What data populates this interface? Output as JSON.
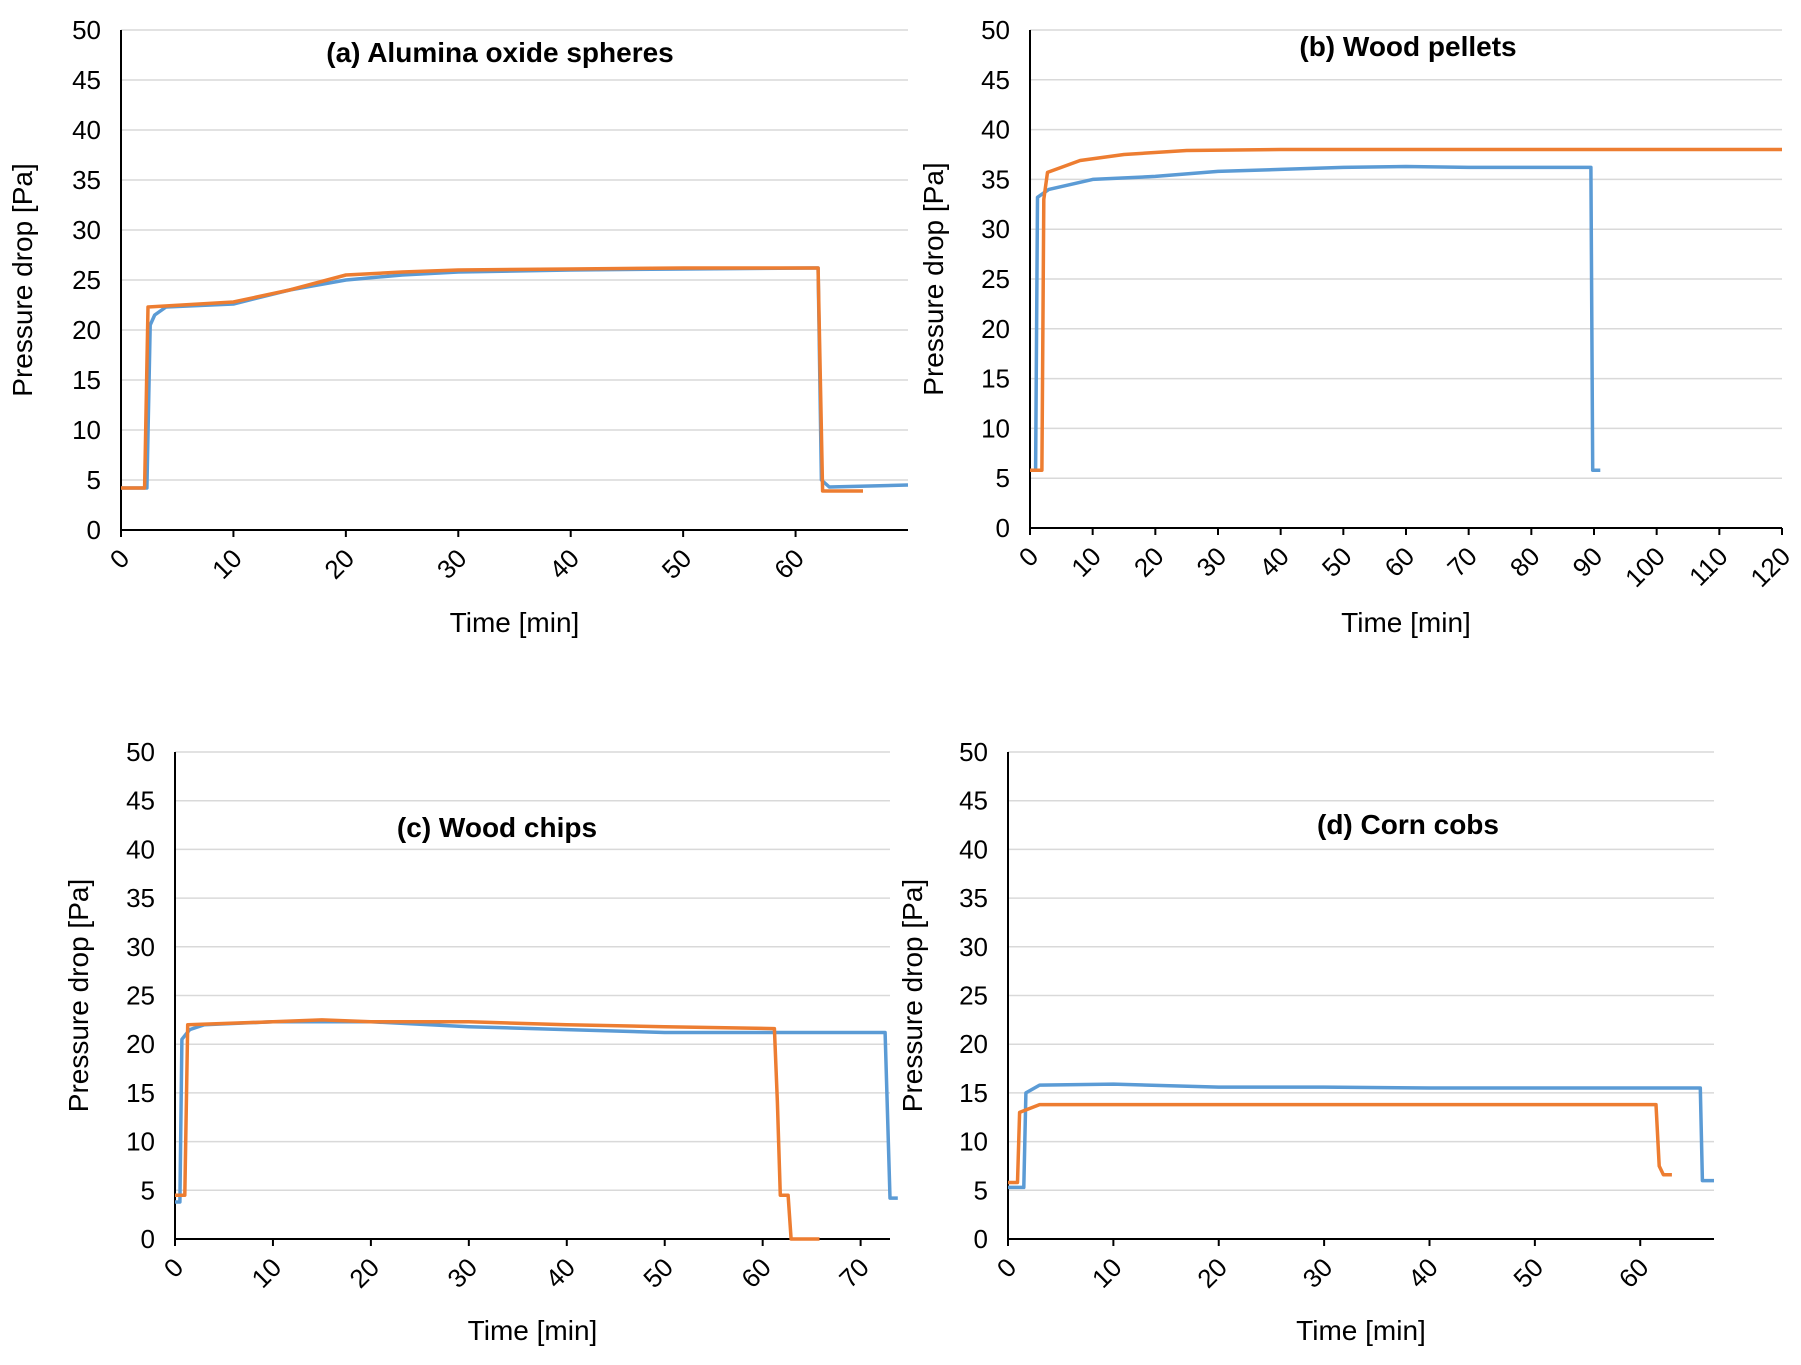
{
  "colors": {
    "series_a": "#5b9bd5",
    "series_b": "#ed7d31"
  },
  "chart_data": [
    {
      "type": "line",
      "title": "(a) Alumina oxide spheres",
      "xlabel": "Time [min]",
      "ylabel": "Pressure drop [Pa]",
      "xlim": [
        0,
        70
      ],
      "ylim": [
        0,
        50
      ],
      "xticks": [
        0,
        10,
        20,
        30,
        40,
        50,
        60
      ],
      "yticks": [
        0,
        5,
        10,
        15,
        20,
        25,
        30,
        35,
        40,
        45,
        50
      ],
      "grid": true,
      "series": [
        {
          "name": "Series 1 (blue)",
          "color": "#5b9bd5",
          "points": [
            [
              0,
              4.2
            ],
            [
              2.3,
              4.2
            ],
            [
              2.6,
              20.5
            ],
            [
              3,
              21.5
            ],
            [
              4,
              22.3
            ],
            [
              10,
              22.6
            ],
            [
              15,
              24
            ],
            [
              20,
              25
            ],
            [
              25,
              25.5
            ],
            [
              30,
              25.8
            ],
            [
              40,
              26
            ],
            [
              50,
              26.1
            ],
            [
              61.5,
              26.2
            ],
            [
              62,
              26.2
            ],
            [
              62.3,
              5
            ],
            [
              63,
              4.3
            ],
            [
              70,
              4.5
            ]
          ]
        },
        {
          "name": "Series 2 (orange)",
          "color": "#ed7d31",
          "points": [
            [
              0,
              4.2
            ],
            [
              2.1,
              4.2
            ],
            [
              2.4,
              22.3
            ],
            [
              10,
              22.8
            ],
            [
              15,
              24
            ],
            [
              20,
              25.5
            ],
            [
              25,
              25.8
            ],
            [
              30,
              26
            ],
            [
              40,
              26.1
            ],
            [
              50,
              26.2
            ],
            [
              61.5,
              26.2
            ],
            [
              62,
              26.2
            ],
            [
              62.4,
              3.9
            ],
            [
              66,
              3.9
            ]
          ]
        }
      ]
    },
    {
      "type": "line",
      "title": "(b) Wood pellets",
      "xlabel": "Time [min]",
      "ylabel": "Pressure drop [Pa]",
      "xlim": [
        0,
        120
      ],
      "ylim": [
        0,
        50
      ],
      "xticks": [
        0,
        10,
        20,
        30,
        40,
        50,
        60,
        70,
        80,
        90,
        100,
        110,
        120
      ],
      "yticks": [
        0,
        5,
        10,
        15,
        20,
        25,
        30,
        35,
        40,
        45,
        50
      ],
      "grid": true,
      "series": [
        {
          "name": "Series 1 (blue)",
          "color": "#5b9bd5",
          "points": [
            [
              0,
              5.8
            ],
            [
              0.9,
              5.8
            ],
            [
              1.2,
              33.2
            ],
            [
              3,
              34
            ],
            [
              10,
              35
            ],
            [
              20,
              35.3
            ],
            [
              30,
              35.8
            ],
            [
              40,
              36
            ],
            [
              50,
              36.2
            ],
            [
              60,
              36.3
            ],
            [
              70,
              36.2
            ],
            [
              80,
              36.2
            ],
            [
              89.5,
              36.2
            ],
            [
              89.8,
              5.8
            ],
            [
              91,
              5.8
            ]
          ]
        },
        {
          "name": "Series 2 (orange)",
          "color": "#ed7d31",
          "points": [
            [
              0,
              5.8
            ],
            [
              1.9,
              5.8
            ],
            [
              2.2,
              33
            ],
            [
              2.8,
              35.7
            ],
            [
              5,
              36.2
            ],
            [
              8,
              36.9
            ],
            [
              15,
              37.5
            ],
            [
              25,
              37.9
            ],
            [
              40,
              38
            ],
            [
              60,
              38
            ],
            [
              80,
              38
            ],
            [
              100,
              38
            ],
            [
              120,
              38
            ]
          ]
        }
      ]
    },
    {
      "type": "line",
      "title": "(c) Wood chips",
      "xlabel": "Time [min]",
      "ylabel": "Pressure drop [Pa]",
      "xlim": [
        0,
        73
      ],
      "ylim": [
        0,
        50
      ],
      "xticks": [
        0,
        10,
        20,
        30,
        40,
        50,
        60,
        70
      ],
      "yticks": [
        0,
        5,
        10,
        15,
        20,
        25,
        30,
        35,
        40,
        45,
        50
      ],
      "grid": true,
      "series": [
        {
          "name": "Series 1 (blue)",
          "color": "#5b9bd5",
          "points": [
            [
              0,
              3.8
            ],
            [
              0.5,
              3.8
            ],
            [
              0.7,
              20.5
            ],
            [
              1.5,
              21.5
            ],
            [
              3,
              22
            ],
            [
              10,
              22.3
            ],
            [
              20,
              22.3
            ],
            [
              30,
              21.8
            ],
            [
              40,
              21.5
            ],
            [
              50,
              21.2
            ],
            [
              60,
              21.2
            ],
            [
              70,
              21.2
            ],
            [
              72.5,
              21.2
            ],
            [
              73,
              4.2
            ],
            [
              73.8,
              4.2
            ]
          ]
        },
        {
          "name": "Series 2 (orange)",
          "color": "#ed7d31",
          "points": [
            [
              0,
              4.5
            ],
            [
              1,
              4.5
            ],
            [
              1.3,
              22
            ],
            [
              10,
              22.3
            ],
            [
              15,
              22.5
            ],
            [
              20,
              22.3
            ],
            [
              30,
              22.3
            ],
            [
              40,
              22
            ],
            [
              50,
              21.8
            ],
            [
              61.2,
              21.6
            ],
            [
              61.5,
              14
            ],
            [
              61.8,
              4.5
            ],
            [
              62.6,
              4.5
            ],
            [
              62.9,
              0
            ],
            [
              65.8,
              0
            ]
          ]
        }
      ]
    },
    {
      "type": "line",
      "title": "(d) Corn cobs",
      "xlabel": "Time [min]",
      "ylabel": "Pressure drop [Pa]",
      "xlim": [
        0,
        67
      ],
      "ylim": [
        0,
        50
      ],
      "xticks": [
        0,
        10,
        20,
        30,
        40,
        50,
        60
      ],
      "yticks": [
        0,
        5,
        10,
        15,
        20,
        25,
        30,
        35,
        40,
        45,
        50
      ],
      "grid": true,
      "series": [
        {
          "name": "Series 1 (blue)",
          "color": "#5b9bd5",
          "points": [
            [
              0,
              5.3
            ],
            [
              1.5,
              5.3
            ],
            [
              1.7,
              15
            ],
            [
              3,
              15.8
            ],
            [
              10,
              15.9
            ],
            [
              20,
              15.6
            ],
            [
              30,
              15.6
            ],
            [
              40,
              15.5
            ],
            [
              50,
              15.5
            ],
            [
              60,
              15.5
            ],
            [
              64,
              15.5
            ],
            [
              65.7,
              15.5
            ],
            [
              65.9,
              6
            ],
            [
              67,
              6
            ]
          ]
        },
        {
          "name": "Series 2 (orange)",
          "color": "#ed7d31",
          "points": [
            [
              0,
              5.8
            ],
            [
              0.9,
              5.8
            ],
            [
              1.1,
              13
            ],
            [
              3,
              13.8
            ],
            [
              10,
              13.8
            ],
            [
              20,
              13.8
            ],
            [
              30,
              13.8
            ],
            [
              40,
              13.8
            ],
            [
              50,
              13.8
            ],
            [
              61.5,
              13.8
            ],
            [
              61.8,
              7.5
            ],
            [
              62.2,
              6.6
            ],
            [
              63,
              6.6
            ]
          ]
        }
      ]
    }
  ]
}
